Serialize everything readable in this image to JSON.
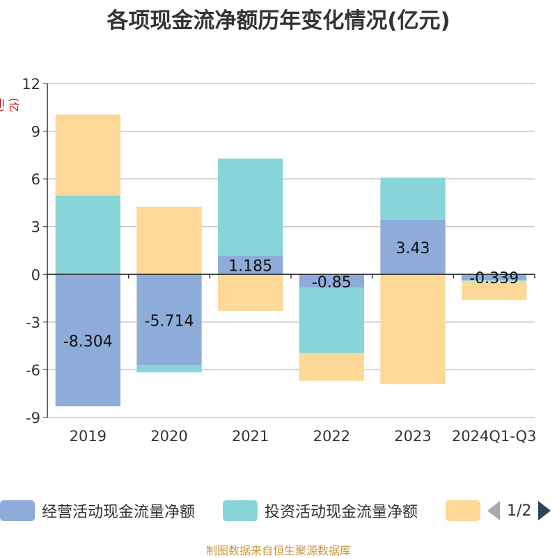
{
  "chart_data": {
    "type": "bar",
    "stacked": true,
    "title": "各项现金流净额历年变化情况(亿元)",
    "ylabel": "(亿元)",
    "categories": [
      "2019",
      "2020",
      "2021",
      "2022",
      "2023",
      "2024Q1-Q3"
    ],
    "ylim": [
      -9,
      12
    ],
    "yticks": [
      -9,
      -6,
      -3,
      0,
      3,
      6,
      9,
      12
    ],
    "grid": true,
    "legend_position": "bottom",
    "series": [
      {
        "name": "经营活动现金流量净额",
        "color": "#8eacd9",
        "values": [
          -8.304,
          -5.714,
          1.185,
          -0.85,
          3.43,
          -0.339
        ],
        "data_labels": [
          "-8.304",
          "-5.714",
          "1.185",
          "-0.85",
          "3.43",
          "-0.339"
        ]
      },
      {
        "name": "投资活动现金流量净额",
        "color": "#87d5d9",
        "values": [
          4.95,
          -0.45,
          6.1,
          -4.1,
          2.65,
          -0.08
        ]
      },
      {
        "name": "",
        "color": "#fdd897",
        "values": [
          5.1,
          4.25,
          -2.3,
          -1.75,
          -6.9,
          -1.2
        ]
      }
    ]
  },
  "legend": {
    "items": [
      {
        "label": "经营活动现金流量净额",
        "color": "#8eacd9"
      },
      {
        "label": "投资活动现金流量净额",
        "color": "#87d5d9"
      },
      {
        "label": "",
        "color": "#fdd897"
      }
    ],
    "page_text": "1/2"
  },
  "source_note": "制图数据来自恒生聚源数据库"
}
